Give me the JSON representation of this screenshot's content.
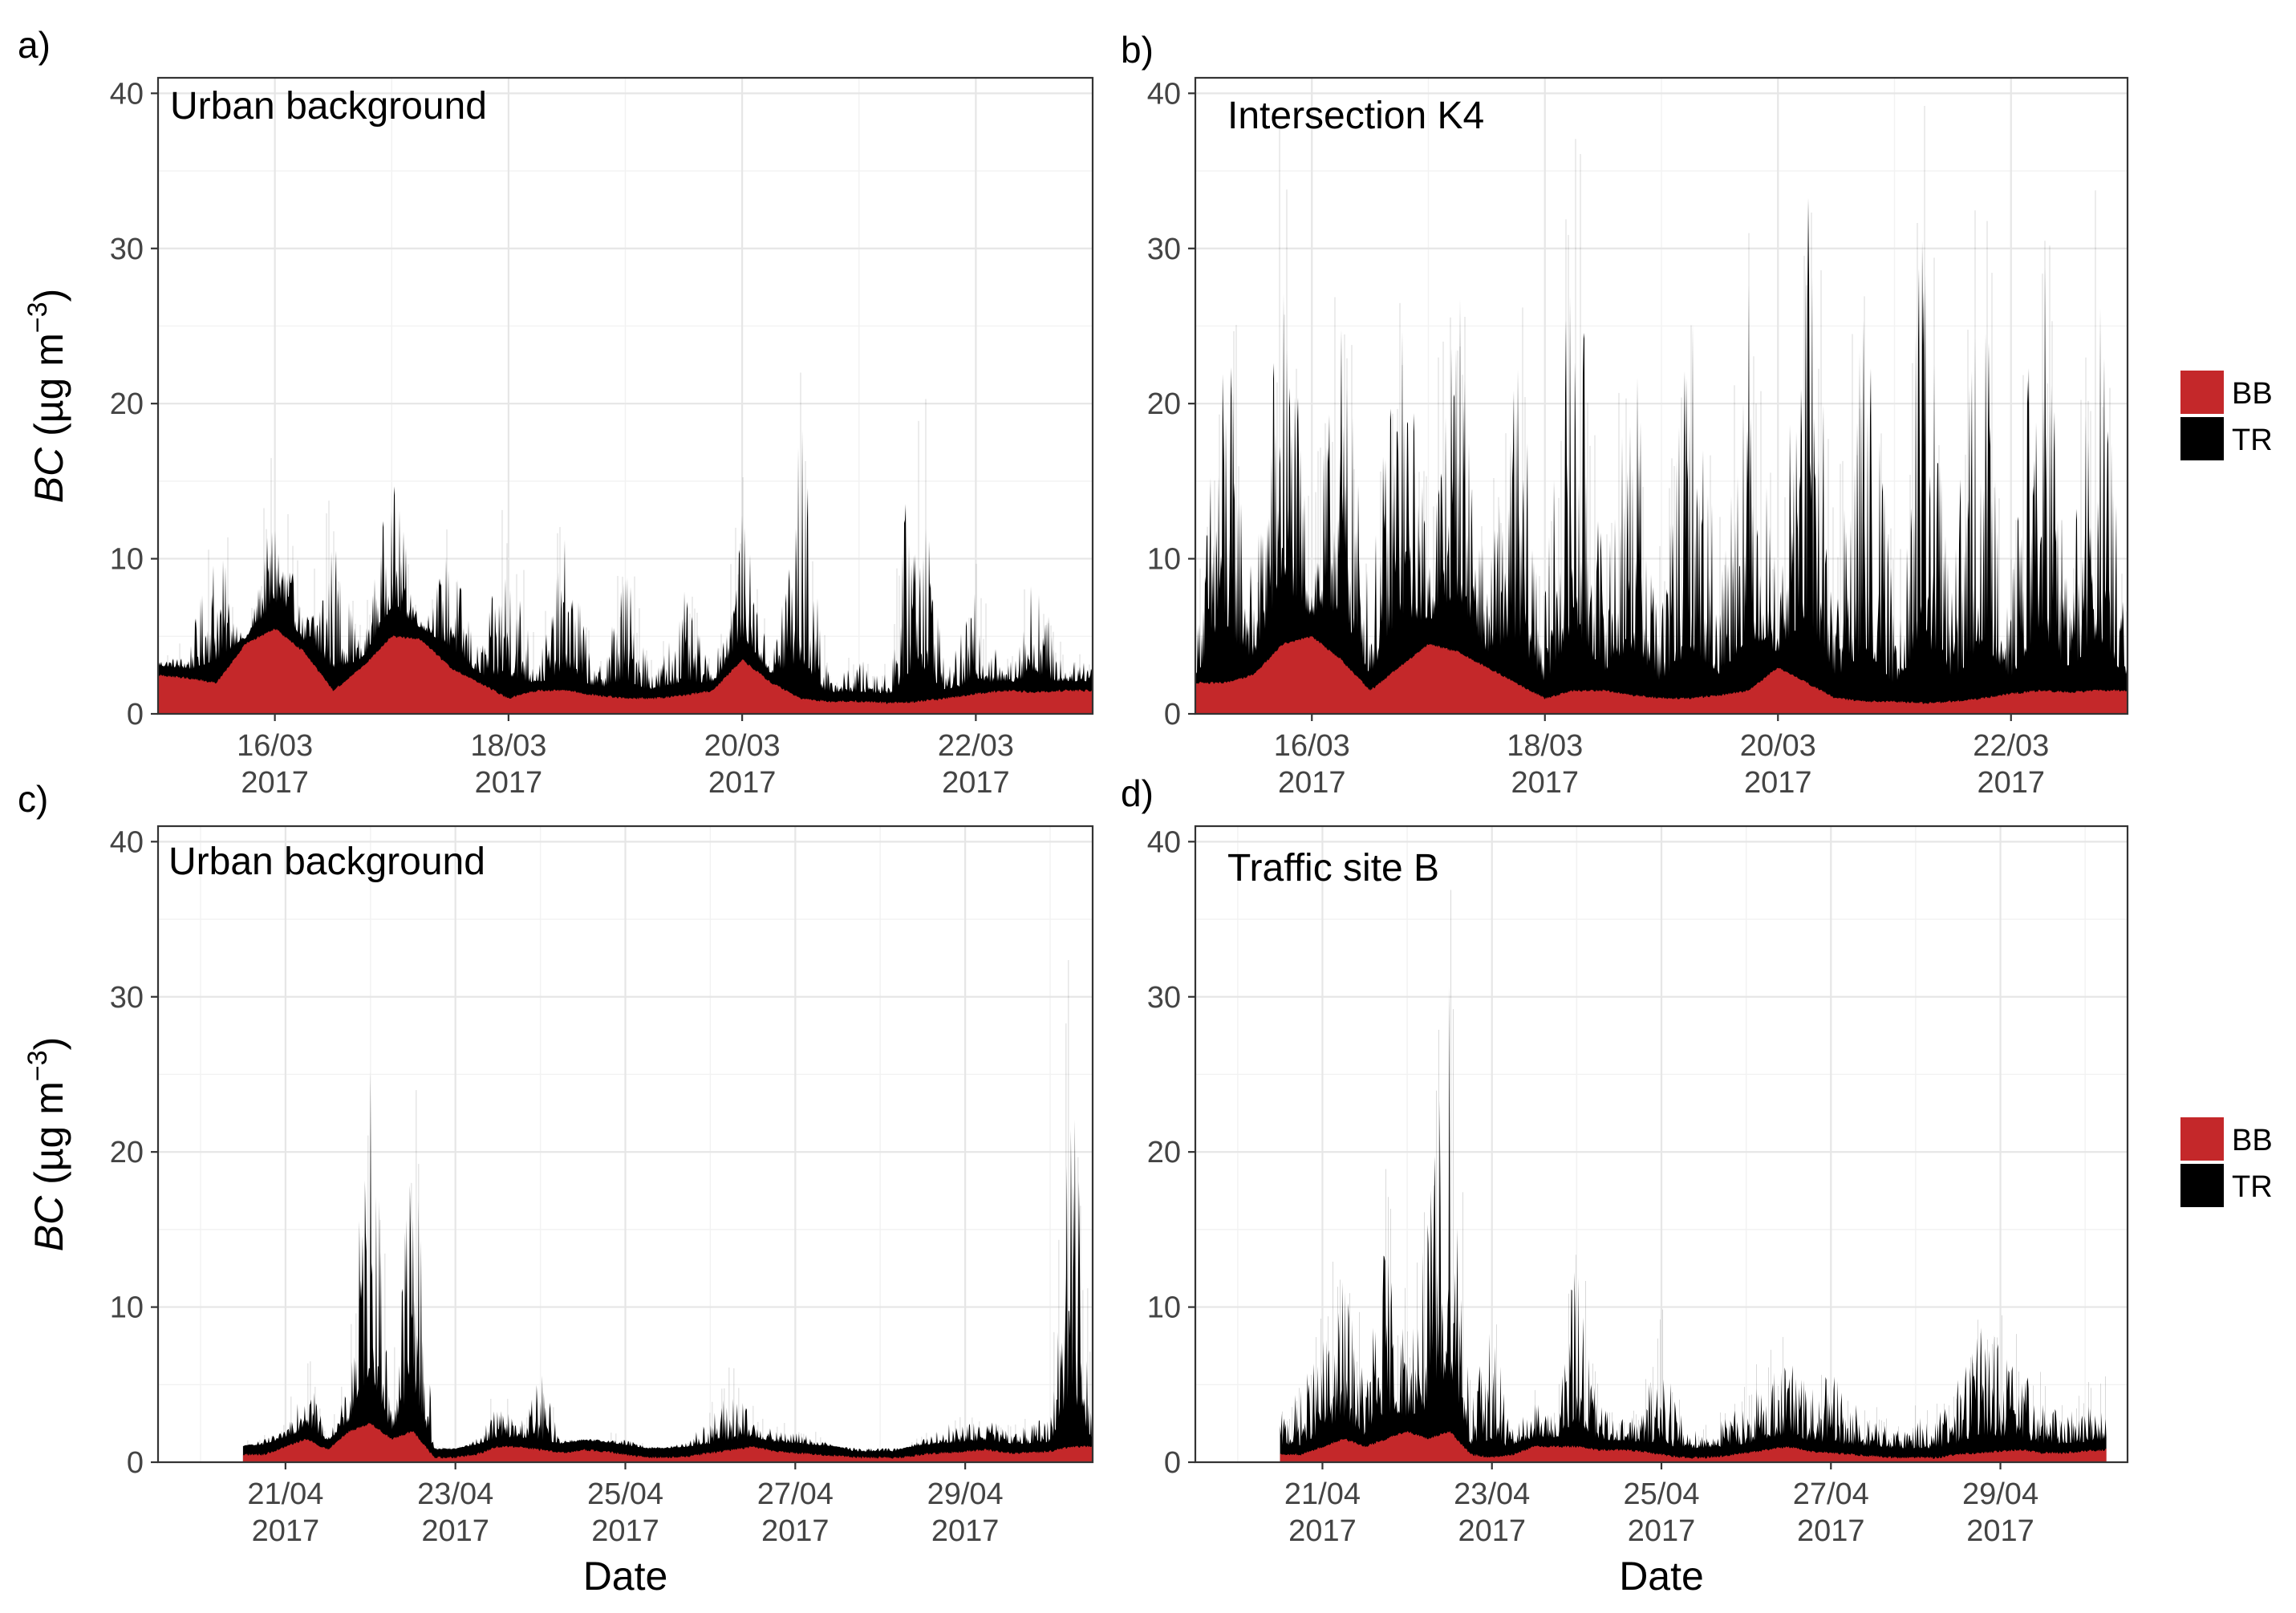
{
  "chart_data": [
    {
      "type": "area",
      "panel_label": "a)",
      "site_label": "Urban background",
      "xlabel": "",
      "ylabel_var": "BC",
      "ylabel_unit": "(µg m",
      "ylabel_exp": "−3",
      "ylabel_close": ")",
      "ylim": [
        0,
        41
      ],
      "y_ticks": [
        "0",
        "10",
        "20",
        "30",
        "40"
      ],
      "x_range": [
        "2017-03-15T00:00",
        "2017-03-23T00:00"
      ],
      "x_ticks": [
        {
          "date": "2017-03-16",
          "day": "16/03",
          "year": "2017"
        },
        {
          "date": "2017-03-18",
          "day": "18/03",
          "year": "2017"
        },
        {
          "date": "2017-03-20",
          "day": "20/03",
          "year": "2017"
        },
        {
          "date": "2017-03-22",
          "day": "22/03",
          "year": "2017"
        }
      ],
      "data_start": "2017-03-15T00:00",
      "data_end": "2017-03-23T00:00",
      "grid": true,
      "legend": "right",
      "series": [
        {
          "name": "BB",
          "color": "#c4282a",
          "time_hours": [
            0,
            6,
            12,
            18,
            24,
            30,
            36,
            42,
            48,
            54,
            60,
            66,
            72,
            78,
            84,
            90,
            96,
            102,
            108,
            114,
            120,
            126,
            132,
            138,
            144,
            150,
            156,
            162,
            168,
            174,
            180,
            186,
            192
          ],
          "values": [
            2.5,
            2.3,
            2.0,
            4.5,
            5.5,
            4.0,
            1.5,
            3.0,
            5.0,
            4.8,
            3.0,
            2.0,
            1.0,
            1.5,
            1.5,
            1.2,
            1.0,
            1.0,
            1.2,
            1.5,
            3.5,
            2.0,
            1.0,
            0.8,
            0.8,
            0.7,
            0.8,
            1.0,
            1.3,
            1.5,
            1.4,
            1.5,
            1.5
          ]
        },
        {
          "name": "TR",
          "color": "#000000",
          "time_hours": [
            0,
            6,
            12,
            18,
            24,
            30,
            36,
            42,
            48,
            54,
            60,
            66,
            72,
            78,
            84,
            90,
            96,
            102,
            108,
            114,
            120,
            126,
            132,
            138,
            144,
            150,
            156,
            162,
            168,
            174,
            180,
            186,
            192
          ],
          "values": [
            3.5,
            3.8,
            12.0,
            4.0,
            14.0,
            6.0,
            12.0,
            4.0,
            16.0,
            6.0,
            11.0,
            4.0,
            12.0,
            3.0,
            12.0,
            2.5,
            10.0,
            2.5,
            8.0,
            2.5,
            13.0,
            3.0,
            20.0,
            2.0,
            3.5,
            2.5,
            21.0,
            2.5,
            8.0,
            2.5,
            10.0,
            3.0,
            4.0
          ]
        }
      ]
    },
    {
      "type": "area",
      "panel_label": "b)",
      "site_label": "Intersection K4",
      "xlabel": "",
      "ylabel_var": "",
      "ylabel_unit": "",
      "ylabel_exp": "",
      "ylabel_close": "",
      "ylim": [
        0,
        41
      ],
      "y_ticks": [
        "0",
        "10",
        "20",
        "30",
        "40"
      ],
      "x_range": [
        "2017-03-15T00:00",
        "2017-03-23T00:00"
      ],
      "x_ticks": [
        {
          "date": "2017-03-16",
          "day": "16/03",
          "year": "2017"
        },
        {
          "date": "2017-03-18",
          "day": "18/03",
          "year": "2017"
        },
        {
          "date": "2017-03-20",
          "day": "20/03",
          "year": "2017"
        },
        {
          "date": "2017-03-22",
          "day": "22/03",
          "year": "2017"
        }
      ],
      "data_start": "2017-03-15T00:00",
      "data_end": "2017-03-23T00:00",
      "grid": true,
      "legend": "right",
      "series": [
        {
          "name": "BB",
          "color": "#c4282a",
          "time_hours": [
            0,
            6,
            12,
            18,
            24,
            30,
            36,
            42,
            48,
            54,
            60,
            66,
            72,
            78,
            84,
            90,
            96,
            102,
            108,
            114,
            120,
            126,
            132,
            138,
            144,
            150,
            156,
            162,
            168,
            174,
            180,
            186,
            192
          ],
          "values": [
            2.0,
            2.0,
            2.5,
            4.5,
            5.0,
            3.5,
            1.5,
            3.0,
            4.5,
            4.0,
            3.0,
            2.0,
            1.0,
            1.5,
            1.5,
            1.2,
            1.0,
            1.0,
            1.2,
            1.5,
            3.0,
            2.0,
            1.0,
            0.8,
            0.8,
            0.7,
            0.8,
            1.0,
            1.3,
            1.5,
            1.4,
            1.5,
            1.5
          ]
        },
        {
          "name": "TR",
          "color": "#000000",
          "time_hours": [
            0,
            6,
            12,
            18,
            24,
            30,
            36,
            42,
            48,
            54,
            60,
            66,
            72,
            78,
            84,
            90,
            96,
            102,
            108,
            114,
            120,
            126,
            132,
            138,
            144,
            150,
            156,
            162,
            168,
            174,
            180,
            186,
            192
          ],
          "values": [
            4.0,
            28.0,
            8.0,
            32.0,
            10.0,
            27.0,
            8.0,
            28.0,
            12.0,
            30.0,
            8.0,
            24.0,
            8.0,
            33.0,
            10.0,
            25.0,
            8.0,
            27.0,
            10.0,
            29.0,
            8.0,
            35.0,
            10.0,
            28.0,
            8.0,
            34.0,
            10.0,
            30.0,
            8.0,
            33.0,
            10.0,
            28.0,
            5.0
          ]
        }
      ]
    },
    {
      "type": "area",
      "panel_label": "c)",
      "site_label": "Urban background",
      "xlabel": "Date",
      "ylabel_var": "BC",
      "ylabel_unit": "(µg m",
      "ylabel_exp": "−3",
      "ylabel_close": ")",
      "ylim": [
        0,
        41
      ],
      "y_ticks": [
        "0",
        "10",
        "20",
        "30",
        "40"
      ],
      "x_range": [
        "2017-04-19T12:00",
        "2017-04-30T12:00"
      ],
      "x_ticks": [
        {
          "date": "2017-04-21",
          "day": "21/04",
          "year": "2017"
        },
        {
          "date": "2017-04-23",
          "day": "23/04",
          "year": "2017"
        },
        {
          "date": "2017-04-25",
          "day": "25/04",
          "year": "2017"
        },
        {
          "date": "2017-04-27",
          "day": "27/04",
          "year": "2017"
        },
        {
          "date": "2017-04-29",
          "day": "29/04",
          "year": "2017"
        }
      ],
      "data_start": "2017-04-20T12:00",
      "data_end": "2017-04-30T12:00",
      "grid": true,
      "legend": "right",
      "series": [
        {
          "name": "BB",
          "color": "#c4282a",
          "time_hours": [
            0,
            6,
            12,
            18,
            24,
            30,
            36,
            42,
            48,
            54,
            60,
            66,
            72,
            78,
            84,
            90,
            96,
            102,
            108,
            114,
            120,
            126,
            132,
            138,
            144,
            150,
            156,
            162,
            168,
            174,
            180,
            186,
            192,
            198,
            204,
            210,
            216,
            222,
            228,
            234,
            240
          ],
          "values": [
            0.5,
            0.5,
            1.0,
            1.5,
            0.8,
            2.0,
            2.5,
            1.5,
            2.0,
            0.3,
            0.3,
            0.5,
            1.0,
            1.0,
            0.8,
            0.6,
            0.8,
            0.7,
            0.5,
            0.3,
            0.3,
            0.4,
            0.6,
            0.8,
            1.0,
            0.7,
            0.6,
            0.5,
            0.4,
            0.3,
            0.3,
            0.3,
            0.5,
            0.6,
            0.7,
            0.8,
            0.6,
            0.6,
            0.7,
            1.0,
            1.0
          ]
        },
        {
          "name": "TR",
          "color": "#000000",
          "time_hours": [
            0,
            6,
            12,
            18,
            24,
            30,
            36,
            42,
            48,
            54,
            60,
            66,
            72,
            78,
            84,
            90,
            96,
            102,
            108,
            114,
            120,
            126,
            132,
            138,
            144,
            150,
            156,
            162,
            168,
            174,
            180,
            186,
            192,
            198,
            204,
            210,
            216,
            222,
            228,
            234,
            240
          ],
          "values": [
            1.0,
            1.5,
            2.0,
            8.0,
            1.5,
            5.0,
            28.0,
            3.0,
            25.0,
            0.8,
            0.8,
            1.5,
            4.0,
            2.5,
            6.0,
            1.5,
            1.5,
            1.5,
            1.5,
            1.0,
            1.0,
            1.5,
            3.0,
            5.0,
            3.0,
            2.0,
            2.0,
            1.5,
            1.0,
            0.5,
            0.5,
            0.8,
            1.5,
            2.5,
            2.5,
            3.0,
            2.0,
            2.5,
            3.0,
            30.0,
            2.5
          ]
        }
      ]
    },
    {
      "type": "area",
      "panel_label": "d)",
      "site_label": "Traffic site B",
      "xlabel": "Date",
      "ylabel_var": "",
      "ylabel_unit": "",
      "ylabel_exp": "",
      "ylabel_close": "",
      "ylim": [
        0,
        41
      ],
      "y_ticks": [
        "0",
        "10",
        "20",
        "30",
        "40"
      ],
      "x_range": [
        "2017-04-19T12:00",
        "2017-04-30T12:00"
      ],
      "x_ticks": [
        {
          "date": "2017-04-21",
          "day": "21/04",
          "year": "2017"
        },
        {
          "date": "2017-04-23",
          "day": "23/04",
          "year": "2017"
        },
        {
          "date": "2017-04-25",
          "day": "25/04",
          "year": "2017"
        },
        {
          "date": "2017-04-27",
          "day": "27/04",
          "year": "2017"
        },
        {
          "date": "2017-04-29",
          "day": "29/04",
          "year": "2017"
        }
      ],
      "data_start": "2017-04-20T12:00",
      "data_end": "2017-04-30T06:00",
      "grid": true,
      "legend": "right",
      "series": [
        {
          "name": "BB",
          "color": "#c4282a",
          "time_hours": [
            0,
            6,
            12,
            18,
            24,
            30,
            36,
            42,
            48,
            54,
            60,
            66,
            72,
            78,
            84,
            90,
            96,
            102,
            108,
            114,
            120,
            126,
            132,
            138,
            144,
            150,
            156,
            162,
            168,
            174,
            180,
            186,
            192,
            198,
            204,
            210,
            216,
            222,
            228,
            234
          ],
          "values": [
            0.5,
            0.5,
            1.0,
            1.5,
            1.0,
            1.5,
            2.0,
            1.5,
            2.0,
            0.5,
            0.3,
            0.5,
            1.0,
            1.0,
            1.0,
            0.8,
            0.8,
            0.7,
            0.5,
            0.3,
            0.3,
            0.4,
            0.6,
            0.8,
            1.0,
            0.7,
            0.6,
            0.5,
            0.4,
            0.3,
            0.3,
            0.3,
            0.5,
            0.6,
            0.7,
            0.8,
            0.6,
            0.6,
            0.7,
            0.8
          ]
        },
        {
          "name": "TR",
          "color": "#000000",
          "time_hours": [
            0,
            6,
            12,
            18,
            24,
            30,
            36,
            42,
            48,
            54,
            60,
            66,
            72,
            78,
            84,
            90,
            96,
            102,
            108,
            114,
            120,
            126,
            132,
            138,
            144,
            150,
            156,
            162,
            168,
            174,
            180,
            186,
            192,
            198,
            204,
            210,
            216,
            222,
            228,
            234
          ],
          "values": [
            3.0,
            5.0,
            8.0,
            12.0,
            6.0,
            15.0,
            8.0,
            16.0,
            33.0,
            4.0,
            10.0,
            2.0,
            4.0,
            3.0,
            14.0,
            4.0,
            3.0,
            3.0,
            8.0,
            3.0,
            2.0,
            3.0,
            4.0,
            6.0,
            7.0,
            5.0,
            6.0,
            4.0,
            3.0,
            2.0,
            3.0,
            3.0,
            6.0,
            10.0,
            8.0,
            6.0,
            5.0,
            3.0,
            4.0,
            5.0
          ]
        }
      ]
    }
  ]
}
